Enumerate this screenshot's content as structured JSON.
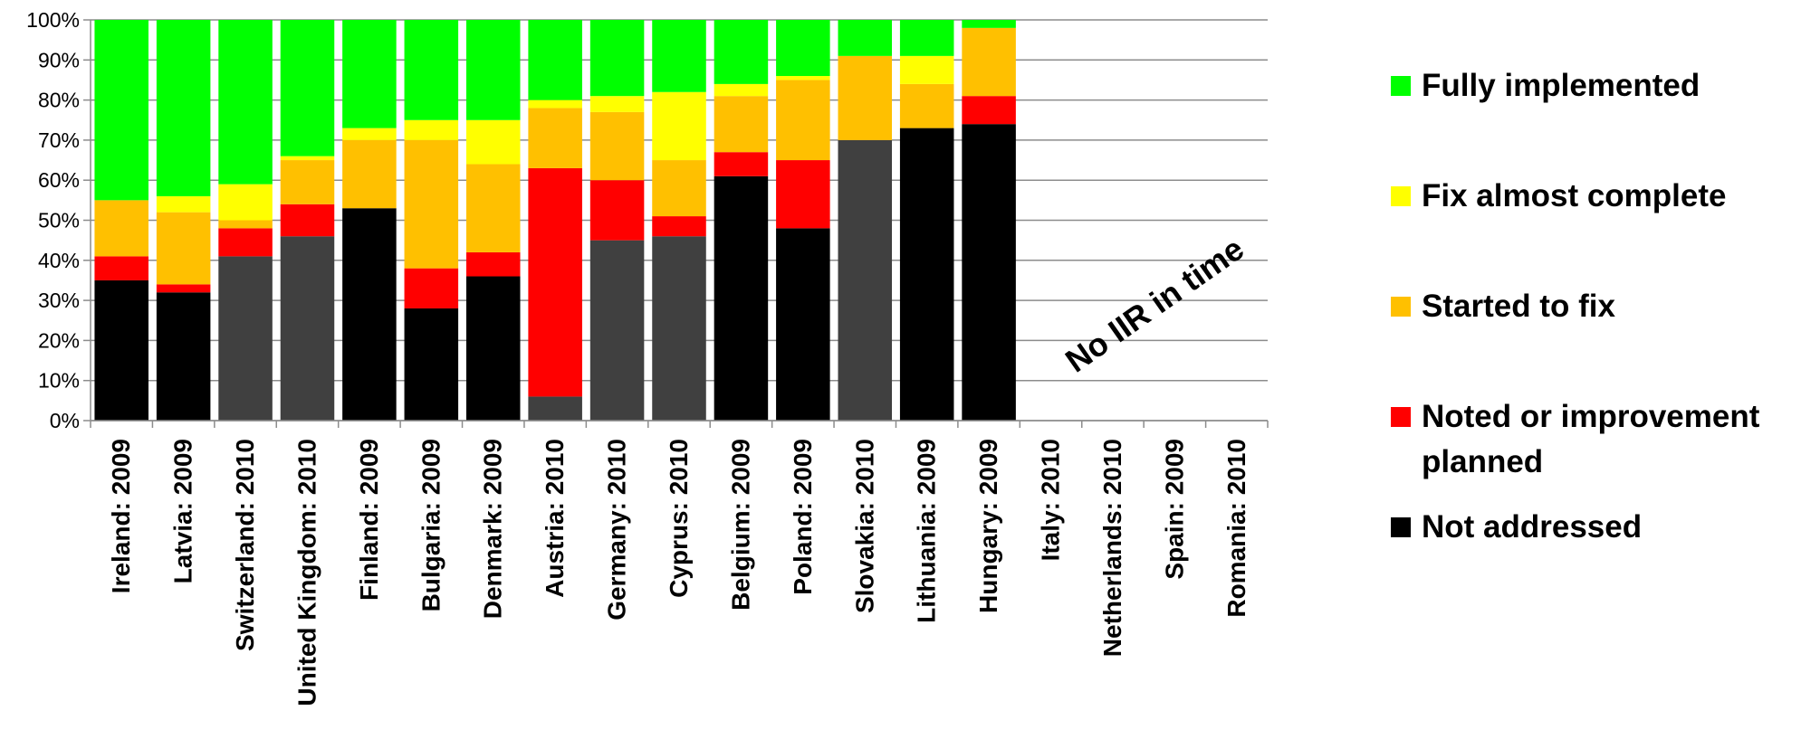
{
  "chart_data": {
    "type": "bar",
    "stacked": true,
    "ylim": [
      0,
      100
    ],
    "ytick_labels": [
      "0%",
      "10%",
      "20%",
      "30%",
      "40%",
      "50%",
      "60%",
      "70%",
      "80%",
      "90%",
      "100%"
    ],
    "grid": true,
    "legend_position": "right",
    "categories": [
      "Ireland: 2009",
      "Latvia: 2009",
      "Switzerland: 2010",
      "United Kingdom: 2010",
      "Finland: 2009",
      "Bulgaria: 2009",
      "Denmark: 2009",
      "Austria: 2010",
      "Germany: 2010",
      "Cyprus: 2010",
      "Belgium: 2009",
      "Poland: 2009",
      "Slovakia: 2010",
      "Lithuania: 2009",
      "Hungary: 2009",
      "Italy: 2010",
      "Netherlands: 2010",
      "Spain: 2009",
      "Romania: 2010"
    ],
    "not_addressed_colors": [
      "#000000",
      "#000000",
      "#404040",
      "#404040",
      "#000000",
      "#000000",
      "#000000",
      "#404040",
      "#404040",
      "#404040",
      "#000000",
      "#000000",
      "#404040",
      "#000000",
      "#000000",
      "#000000",
      "#000000",
      "#000000",
      "#000000"
    ],
    "series": [
      {
        "name": "Not addressed",
        "color": "#000000",
        "values": [
          35,
          32,
          41,
          46,
          53,
          28,
          36,
          6,
          45,
          46,
          61,
          48,
          70,
          73,
          74,
          0,
          0,
          0,
          0
        ]
      },
      {
        "name": "Noted or improvement planned",
        "color": "#ff0000",
        "values": [
          6,
          2,
          7,
          8,
          0,
          10,
          6,
          57,
          15,
          5,
          6,
          17,
          0,
          0,
          7,
          0,
          0,
          0,
          0
        ]
      },
      {
        "name": "Started to fix",
        "color": "#ffc000",
        "values": [
          14,
          18,
          2,
          11,
          17,
          32,
          22,
          15,
          17,
          14,
          14,
          20,
          21,
          11,
          17,
          0,
          0,
          0,
          0
        ]
      },
      {
        "name": "Fix almost complete",
        "color": "#ffff00",
        "values": [
          0,
          4,
          9,
          1,
          3,
          5,
          11,
          2,
          4,
          17,
          3,
          1,
          0,
          7,
          0,
          0,
          0,
          0,
          0
        ]
      },
      {
        "name": "Fully implemented",
        "color": "#00ff00",
        "values": [
          45,
          44,
          41,
          34,
          27,
          25,
          25,
          20,
          19,
          18,
          16,
          14,
          9,
          9,
          2,
          0,
          0,
          0,
          0
        ]
      }
    ],
    "annotation": "No IIR in time"
  },
  "legend": {
    "items": [
      {
        "label": "Fully implemented",
        "color": "#00ff00"
      },
      {
        "label": "Fix almost complete",
        "color": "#ffff00"
      },
      {
        "label": "Started to fix",
        "color": "#ffc000"
      },
      {
        "label": "Noted or improvement planned",
        "color": "#ff0000"
      },
      {
        "label": "Not addressed",
        "color": "#000000"
      }
    ]
  }
}
